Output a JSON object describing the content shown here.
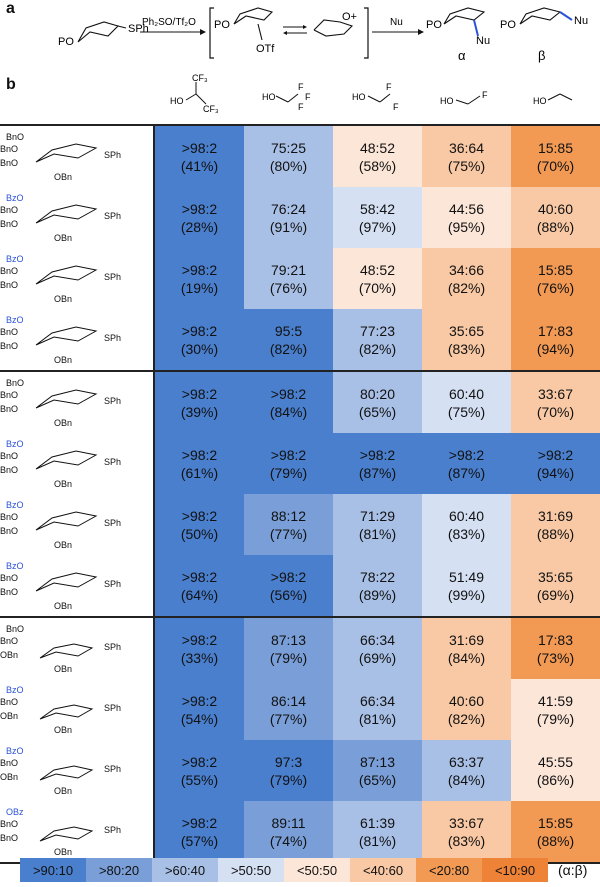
{
  "panel_a": {
    "label": "a",
    "sm_po": "PO",
    "sm_sph": "SPh",
    "reagents": "Ph₂SO/Tf₂O",
    "int_po": "PO",
    "int_otf": "OTf",
    "oxocarbenium": "O+",
    "nu_reagent": "Nu",
    "product_alpha": {
      "po": "PO",
      "nu": "Nu",
      "label": "α"
    },
    "product_beta": {
      "po": "PO",
      "nu": "Nu",
      "label": "β"
    }
  },
  "panel_b": {
    "label": "b",
    "nucleophiles": [
      {
        "top": "CF₃",
        "left": "HO",
        "bottom": "CF₃"
      },
      {
        "left": "HO",
        "right_top": "F",
        "right_mid": "F",
        "right_bot": "F"
      },
      {
        "left": "HO",
        "right_top": "F",
        "right_bot": "F"
      },
      {
        "left": "HO",
        "right": "F"
      },
      {
        "left": "HO"
      }
    ]
  },
  "blocks": [
    {
      "rows": [
        {
          "donor": {
            "labels": [
              "BnO",
              "BnO",
              "BnO",
              "OBn",
              "SPh"
            ],
            "bz": ""
          },
          "cells": [
            [
              "&gt;98:2",
              "(41%)"
            ],
            [
              "75:25",
              "(80%)"
            ],
            [
              "48:52",
              "(58%)"
            ],
            [
              "36:64",
              "(75%)"
            ],
            [
              "15:85",
              "(70%)"
            ]
          ]
        },
        {
          "donor": {
            "labels": [
              "BnO",
              "BnO",
              "OBn",
              "SPh"
            ],
            "bz": "BzO"
          },
          "cells": [
            [
              "&gt;98:2",
              "(28%)"
            ],
            [
              "76:24",
              "(91%)"
            ],
            [
              "58:42",
              "(97%)"
            ],
            [
              "44:56",
              "(95%)"
            ],
            [
              "40:60",
              "(88%)"
            ]
          ]
        },
        {
          "donor": {
            "labels": [
              "BnO",
              "BnO",
              "OBn",
              "SPh"
            ],
            "bz": "BzO"
          },
          "cells": [
            [
              "&gt;98:2",
              "(19%)"
            ],
            [
              "79:21",
              "(76%)"
            ],
            [
              "48:52",
              "(70%)"
            ],
            [
              "34:66",
              "(82%)"
            ],
            [
              "15:85",
              "(76%)"
            ]
          ]
        },
        {
          "donor": {
            "labels": [
              "BnO",
              "BnO",
              "OBn",
              "SPh"
            ],
            "bz": "BzO"
          },
          "cells": [
            [
              "&gt;98:2",
              "(30%)"
            ],
            [
              "95:5",
              "(82%)"
            ],
            [
              "77:23",
              "(82%)"
            ],
            [
              "35:65",
              "(83%)"
            ],
            [
              "17:83",
              "(94%)"
            ]
          ]
        }
      ]
    },
    {
      "rows": [
        {
          "donor": {
            "labels": [
              "BnO",
              "BnO",
              "BnO",
              "OBn",
              "SPh"
            ],
            "bz": ""
          },
          "cells": [
            [
              "&gt;98:2",
              "(39%)"
            ],
            [
              "&gt;98:2",
              "(84%)"
            ],
            [
              "80:20",
              "(65%)"
            ],
            [
              "60:40",
              "(75%)"
            ],
            [
              "33:67",
              "(70%)"
            ]
          ]
        },
        {
          "donor": {
            "labels": [
              "BnO",
              "BnO",
              "OBn",
              "SPh"
            ],
            "bz": "BzO"
          },
          "cells": [
            [
              "&gt;98:2",
              "(61%)"
            ],
            [
              "&gt;98:2",
              "(79%)"
            ],
            [
              "&gt;98:2",
              "(87%)"
            ],
            [
              "&gt;98:2",
              "(87%)"
            ],
            [
              "&gt;98:2",
              "(94%)"
            ]
          ]
        },
        {
          "donor": {
            "labels": [
              "BnO",
              "BnO",
              "OBn",
              "SPh"
            ],
            "bz": "BzO"
          },
          "cells": [
            [
              "&gt;98:2",
              "(50%)"
            ],
            [
              "88:12",
              "(77%)"
            ],
            [
              "71:29",
              "(81%)"
            ],
            [
              "60:40",
              "(83%)"
            ],
            [
              "31:69",
              "(88%)"
            ]
          ]
        },
        {
          "donor": {
            "labels": [
              "BnO",
              "BnO",
              "OBn",
              "SPh"
            ],
            "bz": "BzO"
          },
          "cells": [
            [
              "&gt;98:2",
              "(64%)"
            ],
            [
              "&gt;98:2",
              "(56%)"
            ],
            [
              "78:22",
              "(89%)"
            ],
            [
              "51:49",
              "(99%)"
            ],
            [
              "35:65",
              "(69%)"
            ]
          ]
        }
      ]
    },
    {
      "rows": [
        {
          "donor": {
            "labels": [
              "BnO",
              "BnO",
              "OBn",
              "OBn",
              "SPh"
            ],
            "bz": ""
          },
          "cells": [
            [
              "&gt;98:2",
              "(33%)"
            ],
            [
              "87:13",
              "(79%)"
            ],
            [
              "66:34",
              "(69%)"
            ],
            [
              "31:69",
              "(84%)"
            ],
            [
              "17:83",
              "(73%)"
            ]
          ]
        },
        {
          "donor": {
            "labels": [
              "BnO",
              "OBn",
              "OBn",
              "SPh"
            ],
            "bz": "BzO"
          },
          "cells": [
            [
              "&gt;98:2",
              "(54%)"
            ],
            [
              "86:14",
              "(77%)"
            ],
            [
              "66:34",
              "(81%)"
            ],
            [
              "40:60",
              "(82%)"
            ],
            [
              "41:59",
              "(79%)"
            ]
          ]
        },
        {
          "donor": {
            "labels": [
              "BnO",
              "OBn",
              "OBn",
              "SPh"
            ],
            "bz": "BzO"
          },
          "cells": [
            [
              "&gt;98:2",
              "(55%)"
            ],
            [
              "97:3",
              "(79%)"
            ],
            [
              "87:13",
              "(65%)"
            ],
            [
              "63:37",
              "(84%)"
            ],
            [
              "45:55",
              "(86%)"
            ]
          ]
        },
        {
          "donor": {
            "labels": [
              "BnO",
              "BnO",
              "OBn",
              "SPh"
            ],
            "bz": "OBz"
          },
          "cells": [
            [
              "&gt;98:2",
              "(57%)"
            ],
            [
              "89:11",
              "(74%)"
            ],
            [
              "61:39",
              "(81%)"
            ],
            [
              "33:67",
              "(83%)"
            ],
            [
              "15:85",
              "(88%)"
            ]
          ]
        }
      ]
    }
  ],
  "legend": {
    "items": [
      {
        "label": "&gt;90:10",
        "color": "#4a7fcd"
      },
      {
        "label": "&gt;80:20",
        "color": "#7a9fd8"
      },
      {
        "label": "&gt;60:40",
        "color": "#a9c0e6"
      },
      {
        "label": "&gt;50:50",
        "color": "#d5e0f3"
      },
      {
        "label": "&lt;50:50",
        "color": "#fbe6d8"
      },
      {
        "label": "&lt;40:60",
        "color": "#f8c9a4"
      },
      {
        "label": "&lt;20:80",
        "color": "#f29a54"
      },
      {
        "label": "&lt;10:90",
        "color": "#ee8236"
      }
    ],
    "unit": "(α:β)"
  },
  "colors": {
    "bz_blue": "#2b53d8",
    "bond_blue": "#2b53d8"
  }
}
